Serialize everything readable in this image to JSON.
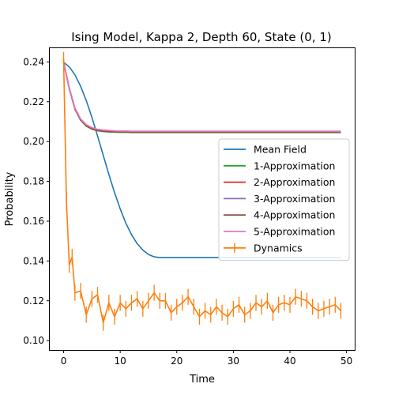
{
  "chart_data": {
    "type": "line",
    "title": "Ising Model, Kappa 2, Depth 60, State (0, 1)",
    "xlabel": "Time",
    "ylabel": "Probability",
    "xlim": [
      -2.45,
      51.45
    ],
    "ylim": [
      0.0953,
      0.2469
    ],
    "xticks": [
      0,
      10,
      20,
      30,
      40,
      50
    ],
    "yticks": [
      0.1,
      0.12,
      0.14,
      0.16,
      0.18,
      0.2,
      0.22,
      0.24
    ],
    "grid": false,
    "legend_position": "center-right",
    "x": [
      0,
      1,
      2,
      3,
      4,
      5,
      6,
      7,
      8,
      9,
      10,
      11,
      12,
      13,
      14,
      15,
      16,
      17,
      18,
      19,
      20,
      21,
      22,
      23,
      24,
      25,
      26,
      27,
      28,
      29,
      30,
      31,
      32,
      33,
      34,
      35,
      36,
      37,
      38,
      39,
      40,
      41,
      42,
      43,
      44,
      45,
      46,
      47,
      48,
      49
    ],
    "series": [
      {
        "name": "Mean Field",
        "color": "#1f77b4",
        "values": [
          0.2398,
          0.2375,
          0.2335,
          0.2278,
          0.2206,
          0.2121,
          0.2028,
          0.1931,
          0.1835,
          0.1744,
          0.1661,
          0.159,
          0.1532,
          0.1487,
          0.1455,
          0.1433,
          0.1421,
          0.1417,
          0.1417,
          0.1417,
          0.1417,
          0.1417,
          0.1417,
          0.1417,
          0.1417,
          0.1417,
          0.1417,
          0.1417,
          0.1417,
          0.1417,
          0.1417,
          0.1417,
          0.1417,
          0.1417,
          0.1417,
          0.1417,
          0.1417,
          0.1417,
          0.1417,
          0.1417,
          0.1417,
          0.1417,
          0.1417,
          0.1417,
          0.1417,
          0.1417,
          0.1417,
          0.1417,
          0.1417,
          0.1417
        ]
      },
      {
        "name": "1-Approximation",
        "color": "#2ca02c",
        "values": [
          0.24,
          0.2265,
          0.2162,
          0.2107,
          0.2077,
          0.2062,
          0.2054,
          0.205,
          0.2048,
          0.2047,
          0.2046,
          0.2046,
          0.2045,
          0.2045,
          0.2045,
          0.2045,
          0.2045,
          0.2045,
          0.2045,
          0.2045,
          0.2045,
          0.2045,
          0.2045,
          0.2045,
          0.2045,
          0.2045,
          0.2045,
          0.2045,
          0.2045,
          0.2045,
          0.2045,
          0.2045,
          0.2045,
          0.2045,
          0.2045,
          0.2045,
          0.2045,
          0.2045,
          0.2045,
          0.2045,
          0.2045,
          0.2045,
          0.2045,
          0.2045,
          0.2045,
          0.2045,
          0.2045,
          0.2045,
          0.2045,
          0.2045
        ]
      },
      {
        "name": "2-Approximation",
        "color": "#d62728",
        "values": [
          0.24,
          0.2267,
          0.2164,
          0.211,
          0.208,
          0.2065,
          0.2057,
          0.2053,
          0.2051,
          0.205,
          0.2049,
          0.2049,
          0.2048,
          0.2048,
          0.2048,
          0.2048,
          0.2048,
          0.2048,
          0.2048,
          0.2048,
          0.2048,
          0.2048,
          0.2048,
          0.2048,
          0.2048,
          0.2048,
          0.2048,
          0.2048,
          0.2048,
          0.2048,
          0.2048,
          0.2048,
          0.2048,
          0.2048,
          0.2048,
          0.2048,
          0.2048,
          0.2048,
          0.2048,
          0.2048,
          0.2048,
          0.2048,
          0.2048,
          0.2048,
          0.2048,
          0.2048,
          0.2048,
          0.2048,
          0.2048,
          0.2048
        ]
      },
      {
        "name": "3-Approximation",
        "color": "#9467bd",
        "values": [
          0.24,
          0.2268,
          0.2166,
          0.2112,
          0.2083,
          0.2068,
          0.206,
          0.2056,
          0.2054,
          0.2052,
          0.2051,
          0.2051,
          0.205,
          0.205,
          0.205,
          0.205,
          0.205,
          0.205,
          0.205,
          0.205,
          0.205,
          0.205,
          0.205,
          0.205,
          0.205,
          0.205,
          0.205,
          0.205,
          0.205,
          0.205,
          0.205,
          0.205,
          0.205,
          0.205,
          0.205,
          0.205,
          0.205,
          0.205,
          0.205,
          0.205,
          0.205,
          0.205,
          0.205,
          0.205,
          0.205,
          0.205,
          0.205,
          0.205,
          0.205,
          0.205
        ]
      },
      {
        "name": "4-Approximation",
        "color": "#8c564b",
        "values": [
          0.24,
          0.2269,
          0.2167,
          0.2113,
          0.2084,
          0.2069,
          0.2061,
          0.2057,
          0.2055,
          0.2053,
          0.2052,
          0.2052,
          0.2051,
          0.2051,
          0.2051,
          0.2051,
          0.2051,
          0.2051,
          0.2051,
          0.2051,
          0.2051,
          0.2051,
          0.2051,
          0.2051,
          0.2051,
          0.2051,
          0.2051,
          0.2051,
          0.2051,
          0.2051,
          0.2051,
          0.2051,
          0.2051,
          0.2051,
          0.2051,
          0.2051,
          0.2051,
          0.2051,
          0.2051,
          0.2051,
          0.2051,
          0.2051,
          0.2051,
          0.2051,
          0.2051,
          0.2051,
          0.2051,
          0.2051,
          0.2051,
          0.2051
        ]
      },
      {
        "name": "5-Approximation",
        "color": "#e377c2",
        "values": [
          0.24,
          0.227,
          0.2168,
          0.2114,
          0.2085,
          0.207,
          0.2062,
          0.2058,
          0.2056,
          0.2054,
          0.2053,
          0.2053,
          0.2052,
          0.2052,
          0.2052,
          0.2052,
          0.2052,
          0.2052,
          0.2052,
          0.2052,
          0.2052,
          0.2052,
          0.2052,
          0.2052,
          0.2052,
          0.2052,
          0.2052,
          0.2052,
          0.2052,
          0.2052,
          0.2052,
          0.2052,
          0.2052,
          0.2052,
          0.2052,
          0.2052,
          0.2052,
          0.2052,
          0.2052,
          0.2052,
          0.2052,
          0.2052,
          0.2052,
          0.2052,
          0.2052,
          0.2052,
          0.2052,
          0.2052,
          0.2052,
          0.2052
        ]
      },
      {
        "name": "Dynamics",
        "color": "#ff7f0e",
        "errorbars": true,
        "x": [
          0,
          0.5,
          1,
          1.5,
          2,
          3,
          4,
          5,
          6,
          7,
          8,
          9,
          10,
          11,
          12,
          13,
          14,
          15,
          16,
          17,
          18,
          19,
          20,
          21,
          22,
          23,
          24,
          25,
          26,
          27,
          28,
          29,
          30,
          31,
          32,
          33,
          34,
          35,
          36,
          37,
          38,
          39,
          40,
          41,
          42,
          43,
          44,
          45,
          46,
          47,
          48,
          49
        ],
        "values": [
          0.242,
          0.17,
          0.138,
          0.142,
          0.124,
          0.125,
          0.113,
          0.121,
          0.123,
          0.109,
          0.119,
          0.112,
          0.119,
          0.116,
          0.119,
          0.121,
          0.116,
          0.12,
          0.124,
          0.12,
          0.12,
          0.114,
          0.117,
          0.119,
          0.122,
          0.117,
          0.112,
          0.115,
          0.113,
          0.117,
          0.114,
          0.112,
          0.116,
          0.118,
          0.113,
          0.115,
          0.119,
          0.117,
          0.12,
          0.114,
          0.118,
          0.119,
          0.118,
          0.122,
          0.121,
          0.12,
          0.117,
          0.115,
          0.116,
          0.117,
          0.118,
          0.115
        ],
        "errors": [
          0.003,
          0.005,
          0.004,
          0.004,
          0.004,
          0.004,
          0.004,
          0.004,
          0.004,
          0.004,
          0.004,
          0.004,
          0.004,
          0.004,
          0.004,
          0.004,
          0.004,
          0.004,
          0.004,
          0.004,
          0.004,
          0.004,
          0.004,
          0.004,
          0.004,
          0.004,
          0.004,
          0.004,
          0.004,
          0.004,
          0.004,
          0.004,
          0.004,
          0.004,
          0.004,
          0.004,
          0.004,
          0.004,
          0.004,
          0.004,
          0.004,
          0.004,
          0.004,
          0.004,
          0.004,
          0.004,
          0.004,
          0.004,
          0.004,
          0.004,
          0.004,
          0.004
        ]
      }
    ]
  }
}
